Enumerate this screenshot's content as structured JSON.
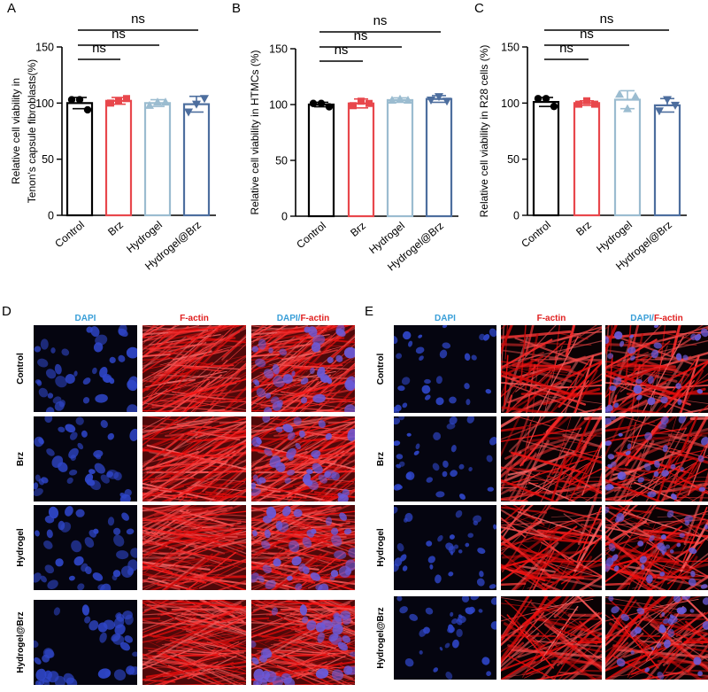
{
  "chart_data": [
    {
      "type": "bar",
      "panel_label": "A",
      "title": "",
      "xlabel": "",
      "ylabel": "Relative cell viability in\nTenon's capsule fibroblasts(%)",
      "ylim": [
        0,
        150
      ],
      "yticks": [
        0,
        50,
        100,
        150
      ],
      "categories": [
        "Control",
        "Brz",
        "Hydrogel",
        "Hydrogel@Brz"
      ],
      "values": [
        100,
        102,
        100,
        99
      ],
      "errors": [
        5,
        3,
        3,
        7
      ],
      "points": [
        [
          103,
          103,
          94
        ],
        [
          100,
          102,
          104
        ],
        [
          98,
          101,
          101
        ],
        [
          92,
          99,
          104
        ]
      ],
      "markers": [
        "circle",
        "square",
        "triangle-up",
        "triangle-down"
      ],
      "comparisons": [
        {
          "from": 0,
          "to": 1,
          "label": "ns"
        },
        {
          "from": 0,
          "to": 2,
          "label": "ns"
        },
        {
          "from": 0,
          "to": 3,
          "label": "ns"
        }
      ]
    },
    {
      "type": "bar",
      "panel_label": "B",
      "title": "",
      "xlabel": "",
      "ylabel": "Relative cell viability in HTMCs (%)",
      "ylim": [
        0,
        150
      ],
      "yticks": [
        0,
        50,
        100,
        150
      ],
      "categories": [
        "Control",
        "Brz",
        "Hydrogel",
        "Hydrogel@Brz"
      ],
      "values": [
        100,
        101,
        104,
        105
      ],
      "errors": [
        2,
        4,
        2,
        3
      ],
      "points": [
        [
          101,
          101,
          98
        ],
        [
          99,
          103,
          101
        ],
        [
          104,
          105,
          104
        ],
        [
          104,
          107,
          103
        ]
      ],
      "markers": [
        "circle",
        "square",
        "triangle-up",
        "triangle-down"
      ],
      "comparisons": [
        {
          "from": 0,
          "to": 1,
          "label": "ns"
        },
        {
          "from": 0,
          "to": 2,
          "label": "ns"
        },
        {
          "from": 0,
          "to": 3,
          "label": "ns"
        }
      ]
    },
    {
      "type": "bar",
      "panel_label": "C",
      "title": "",
      "xlabel": "",
      "ylabel": "Relative cell viability in R28 cells (%)",
      "ylim": [
        0,
        150
      ],
      "yticks": [
        0,
        50,
        100,
        150
      ],
      "categories": [
        "Control",
        "Brz",
        "Hydrogel",
        "Hydrogel@Brz"
      ],
      "values": [
        101,
        100,
        103,
        98
      ],
      "errors": [
        4,
        2,
        8,
        6
      ],
      "points": [
        [
          104,
          104,
          97
        ],
        [
          99,
          102,
          99
        ],
        [
          108,
          95,
          106
        ],
        [
          93,
          103,
          98
        ]
      ],
      "markers": [
        "circle",
        "square",
        "triangle-up",
        "triangle-down"
      ],
      "comparisons": [
        {
          "from": 0,
          "to": 1,
          "label": "ns"
        },
        {
          "from": 0,
          "to": 2,
          "label": "ns"
        },
        {
          "from": 0,
          "to": 3,
          "label": "ns"
        }
      ]
    }
  ],
  "bar_colors": [
    "#000000",
    "#e8474c",
    "#9bbcd0",
    "#4d6e9e"
  ],
  "image_panels": [
    {
      "panel_label": "D",
      "columns": [
        {
          "parts": [
            {
              "text": "DAPI",
              "color": "#3a9fd8"
            }
          ]
        },
        {
          "parts": [
            {
              "text": "F-actin",
              "color": "#e02020"
            }
          ]
        },
        {
          "parts": [
            {
              "text": "DAPI",
              "color": "#3a9fd8"
            },
            {
              "text": "/",
              "color": "#3a9fd8"
            },
            {
              "text": "F-actin",
              "color": "#e02020"
            }
          ]
        }
      ],
      "rows": [
        "Control",
        "Brz",
        "Hydrogel",
        "Hydrogel@Brz"
      ]
    },
    {
      "panel_label": "E",
      "columns": [
        {
          "parts": [
            {
              "text": "DAPI",
              "color": "#3a9fd8"
            }
          ]
        },
        {
          "parts": [
            {
              "text": "F-actin",
              "color": "#e02020"
            }
          ]
        },
        {
          "parts": [
            {
              "text": "DAPI",
              "color": "#3a9fd8"
            },
            {
              "text": "/",
              "color": "#3a9fd8"
            },
            {
              "text": "F-actin",
              "color": "#e02020"
            }
          ]
        }
      ],
      "rows": [
        "Control",
        "Brz",
        "Hydrogel",
        "Hydrogel@Brz"
      ]
    }
  ]
}
